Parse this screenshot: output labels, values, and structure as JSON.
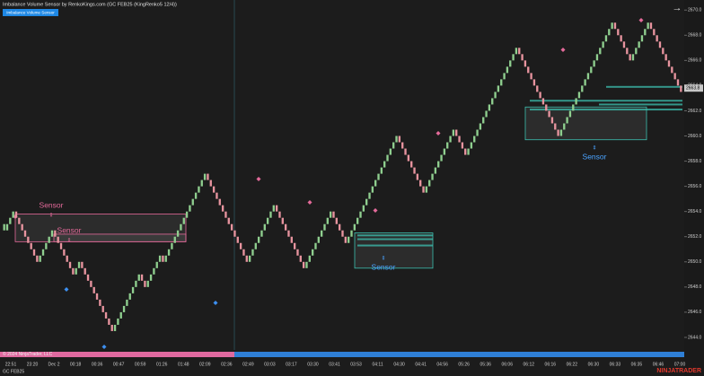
{
  "chart_data": {
    "type": "renko",
    "title": "Imbalance Volume Sensor by RenkoKings.com (GC FEB25 (KingRenko5 12/4))",
    "indicator_button": "Imbalance Volume Sensor",
    "instrument": "GC FEB25",
    "copyright": "© 2024 NinjaTrader, LLC",
    "brand": "NINJATRADER",
    "up_color": "#8fcf8f",
    "down_color": "#e8949f",
    "ylim": [
      2643,
      2670.8
    ],
    "yticks": [
      {
        "value": 2644,
        "label": "2644.0"
      },
      {
        "value": 2646,
        "label": "2646.0"
      },
      {
        "value": 2648,
        "label": "2648.0"
      },
      {
        "value": 2650,
        "label": "2650.0"
      },
      {
        "value": 2652,
        "label": "2652.0"
      },
      {
        "value": 2654,
        "label": "2654.0"
      },
      {
        "value": 2656,
        "label": "2656.0"
      },
      {
        "value": 2658,
        "label": "2658.0"
      },
      {
        "value": 2660,
        "label": "2660.0"
      },
      {
        "value": 2662,
        "label": "2662.0"
      },
      {
        "value": 2664,
        "label": "2664.0"
      },
      {
        "value": 2666,
        "label": "2666.0"
      },
      {
        "value": 2668,
        "label": "2668.0"
      },
      {
        "value": 2670,
        "label": "2670.0"
      }
    ],
    "last_price": 2663.8,
    "xtick_labels": [
      "22:51",
      "23:20",
      "Dec 2",
      "00:18",
      "00:36",
      "00:47",
      "00:59",
      "01:26",
      "01:48",
      "02:09",
      "02:36",
      "02:49",
      "03:03",
      "03:17",
      "03:30",
      "03:41",
      "03:53",
      "04:11",
      "04:30",
      "04:41",
      "04:56",
      "05:26",
      "05:36",
      "06:06",
      "06:12",
      "06:16",
      "06:22",
      "06:30",
      "06:33",
      "06:35",
      "06:46",
      "07:00"
    ],
    "values": [
      2652.5,
      2653,
      2653.5,
      2654,
      2653.5,
      2653,
      2652.5,
      2652,
      2651.5,
      2651,
      2650.5,
      2650,
      2650.5,
      2651,
      2651.5,
      2652,
      2652.5,
      2652,
      2651.5,
      2651,
      2650.5,
      2650,
      2649.5,
      2649,
      2649.5,
      2650,
      2649.5,
      2649,
      2648.5,
      2648,
      2647.5,
      2647,
      2646.5,
      2646,
      2645.5,
      2645,
      2644.5,
      2645,
      2645.5,
      2646,
      2646.5,
      2647,
      2647.5,
      2648,
      2648.5,
      2649,
      2648.5,
      2648,
      2648.5,
      2649,
      2649.5,
      2650,
      2650.5,
      2650,
      2650.5,
      2651,
      2651.5,
      2652,
      2652.5,
      2653,
      2653.5,
      2654,
      2654.5,
      2655,
      2655.5,
      2656,
      2656.5,
      2657,
      2656.5,
      2656,
      2655.5,
      2655,
      2654.5,
      2654,
      2653.5,
      2653,
      2652.5,
      2652,
      2651.5,
      2651,
      2650.5,
      2650,
      2650.5,
      2651,
      2651.5,
      2652,
      2652.5,
      2653,
      2653.5,
      2654,
      2654.5,
      2654,
      2653.5,
      2653,
      2652.5,
      2652,
      2651.5,
      2651,
      2650.5,
      2650,
      2649.5,
      2650,
      2650.5,
      2651,
      2651.5,
      2652,
      2652.5,
      2653,
      2653.5,
      2654,
      2653.5,
      2653,
      2652.5,
      2652,
      2651.5,
      2652,
      2652.5,
      2653,
      2653.5,
      2654,
      2654.5,
      2655,
      2655.5,
      2656,
      2656.5,
      2657,
      2657.5,
      2658,
      2658.5,
      2659,
      2659.5,
      2660,
      2659.5,
      2659,
      2658.5,
      2658,
      2657.5,
      2657,
      2656.5,
      2656,
      2655.5,
      2656,
      2656.5,
      2657,
      2657.5,
      2658,
      2658.5,
      2659,
      2659.5,
      2660,
      2660.5,
      2660,
      2659.5,
      2659,
      2658.5,
      2659,
      2659.5,
      2660,
      2660.5,
      2661,
      2661.5,
      2662,
      2662.5,
      2663,
      2663.5,
      2664,
      2664.5,
      2665,
      2665.5,
      2666,
      2666.5,
      2667,
      2666.5,
      2666,
      2665.5,
      2665,
      2664.5,
      2664,
      2663.5,
      2663,
      2662.5,
      2662,
      2661.5,
      2661,
      2660.5,
      2660,
      2660.5,
      2661,
      2661.5,
      2662,
      2662.5,
      2663,
      2663.5,
      2664,
      2664.5,
      2665,
      2665.5,
      2666,
      2666.5,
      2667,
      2667.5,
      2668,
      2668.5,
      2669,
      2668.5,
      2668,
      2667.5,
      2667,
      2666.5,
      2666,
      2666.5,
      2667,
      2667.5,
      2668,
      2668.5,
      2669,
      2668.5,
      2668,
      2667.5,
      2667,
      2666.5,
      2666,
      2665.5,
      2665,
      2664.5,
      2664,
      2663.5
    ],
    "zones": [
      {
        "label": "Sensor",
        "low": 2651.6,
        "high": 2653.8,
        "color": "#e46a9a"
      },
      {
        "label": "Sensor",
        "low": 2651.6,
        "high": 2652.2,
        "color": "#e46a9a"
      },
      {
        "label": "Sensor",
        "low": 2649.5,
        "high": 2652.3,
        "color": "#3cc0b0"
      },
      {
        "label": "Sensor",
        "low": 2659.7,
        "high": 2662.3,
        "color": "#3cc0b0"
      }
    ],
    "levels": [
      2663.9,
      2662.8,
      2662.5,
      2662.1,
      2652.1,
      2651.8,
      2651.3
    ]
  }
}
